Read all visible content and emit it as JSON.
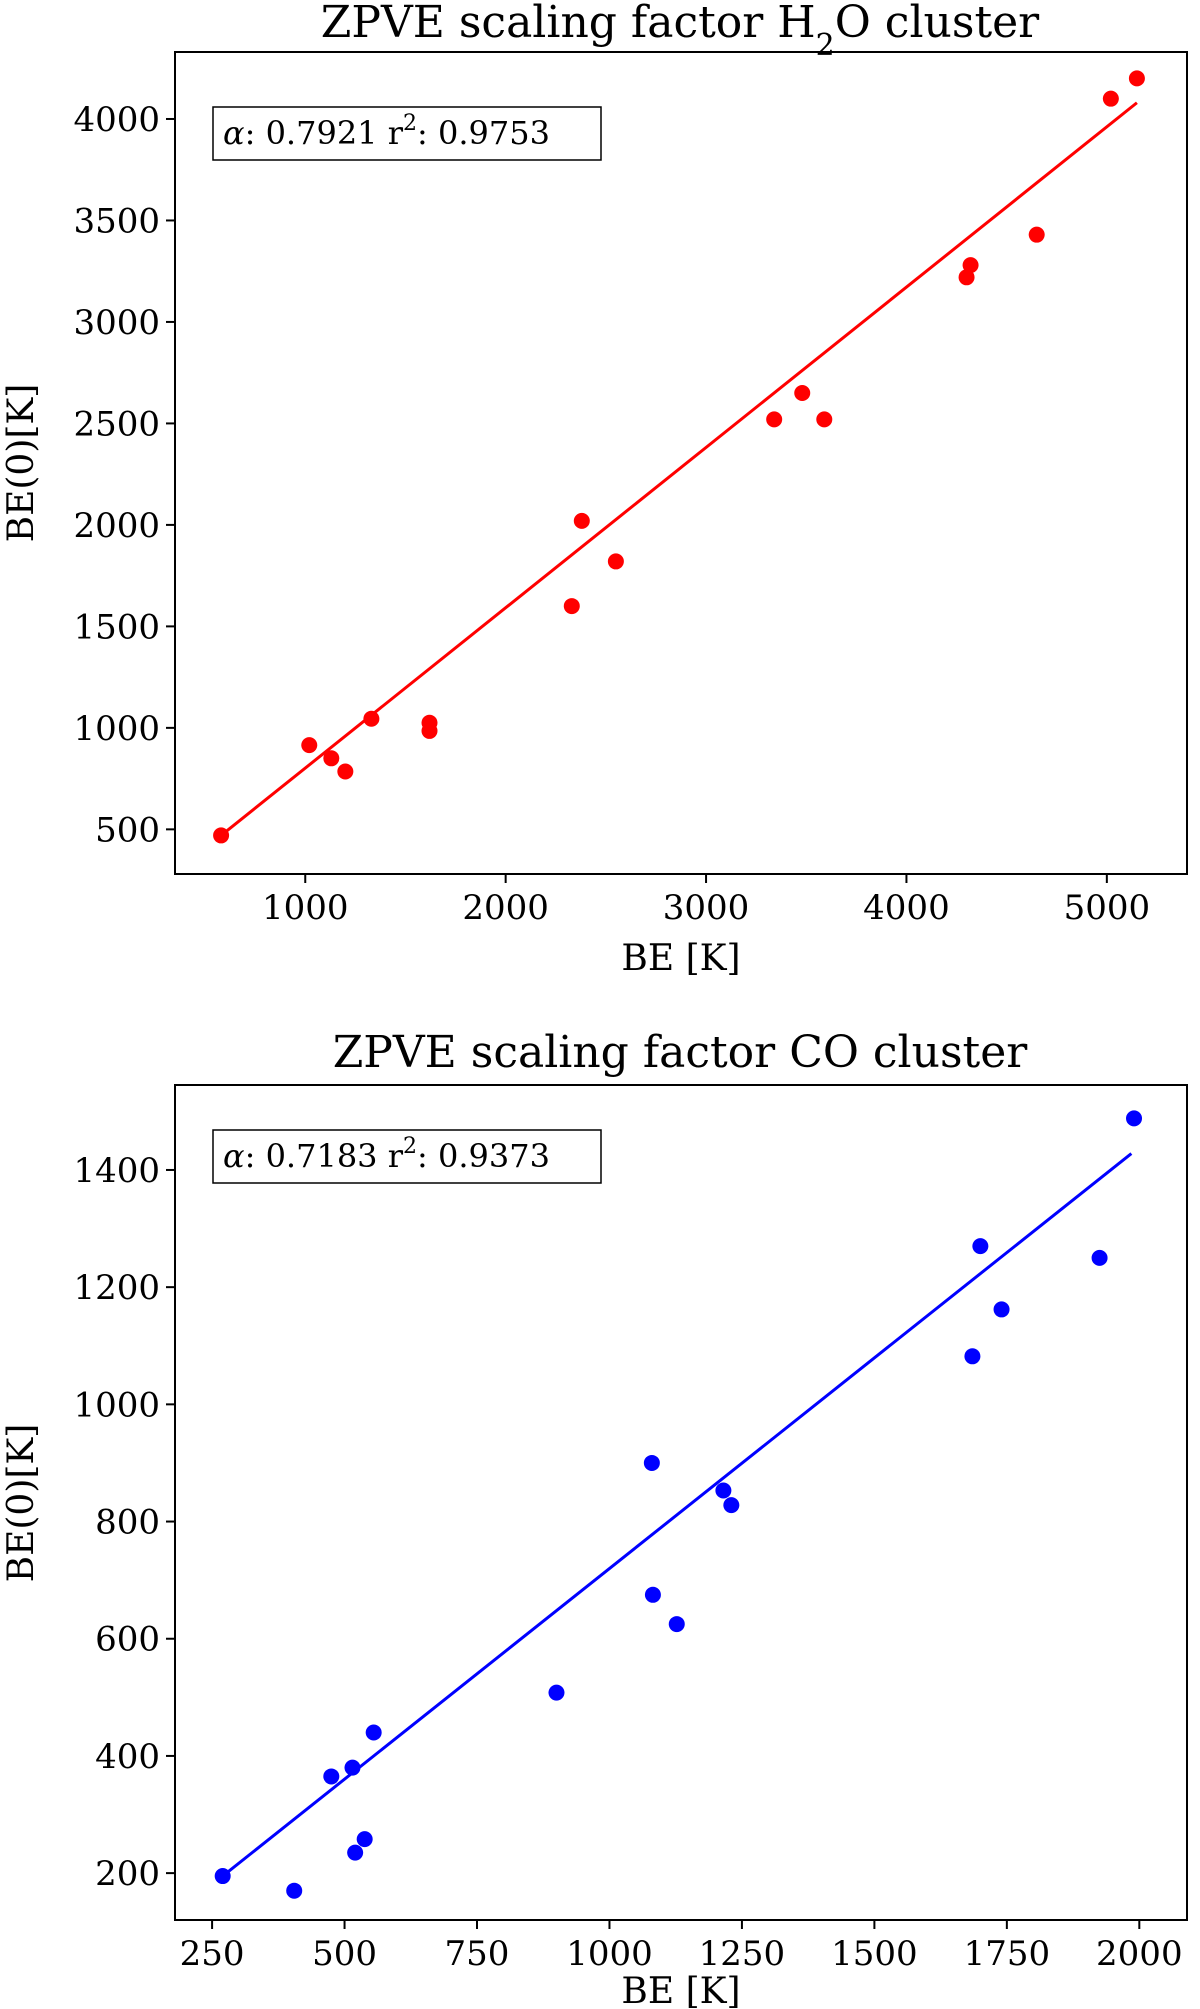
{
  "chart_data": [
    {
      "type": "scatter",
      "title_prefix": "ZPVE scaling factor H",
      "title_sub": "2",
      "title_suffix": "O cluster",
      "xlabel": "BE [K]",
      "ylabel": "BE(0)[K]",
      "xlim": [
        350,
        5400
      ],
      "ylim": [
        280,
        4330
      ],
      "xticks": [
        1000,
        2000,
        3000,
        4000,
        5000
      ],
      "yticks": [
        500,
        1000,
        1500,
        2000,
        2500,
        3000,
        3500,
        4000
      ],
      "color": "#ff0000",
      "annotation": {
        "alpha_symbol": "α",
        "alpha_label": ": 0.7921 r",
        "r2_exp": "2",
        "r2_label": ": 0.9753"
      },
      "fit": {
        "x": [
          580,
          5150
        ],
        "y": [
          470,
          4080
        ]
      },
      "x": [
        580,
        1020,
        1130,
        1200,
        1330,
        1620,
        1620,
        2330,
        2380,
        2550,
        3340,
        3480,
        3590,
        4300,
        4320,
        4650,
        5020,
        5150
      ],
      "y": [
        470,
        915,
        850,
        785,
        1045,
        1025,
        985,
        1600,
        2020,
        1820,
        2520,
        2650,
        2520,
        3220,
        3280,
        3430,
        4100,
        4200
      ]
    },
    {
      "type": "scatter",
      "title_prefix": "ZPVE scaling factor CO cluster",
      "title_sub": "",
      "title_suffix": "",
      "xlabel": "BE [K]",
      "ylabel": "BE(0)[K]",
      "xlim": [
        180,
        2090
      ],
      "ylim": [
        120,
        1545
      ],
      "xticks": [
        250,
        500,
        750,
        1000,
        1250,
        1500,
        1750,
        2000
      ],
      "yticks": [
        200,
        400,
        600,
        800,
        1000,
        1200,
        1400
      ],
      "color": "#0000ff",
      "annotation": {
        "alpha_symbol": "α",
        "alpha_label": ": 0.7183 r",
        "r2_exp": "2",
        "r2_label": ": 0.9373"
      },
      "fit": {
        "x": [
          270,
          1985
        ],
        "y": [
          195,
          1428
        ]
      },
      "x": [
        270,
        405,
        475,
        515,
        520,
        538,
        555,
        900,
        1080,
        1082,
        1127,
        1215,
        1230,
        1685,
        1700,
        1740,
        1925,
        1990
      ],
      "y": [
        195,
        170,
        365,
        380,
        235,
        258,
        440,
        508,
        900,
        675,
        625,
        853,
        828,
        1082,
        1270,
        1162,
        1250,
        1488
      ]
    }
  ]
}
